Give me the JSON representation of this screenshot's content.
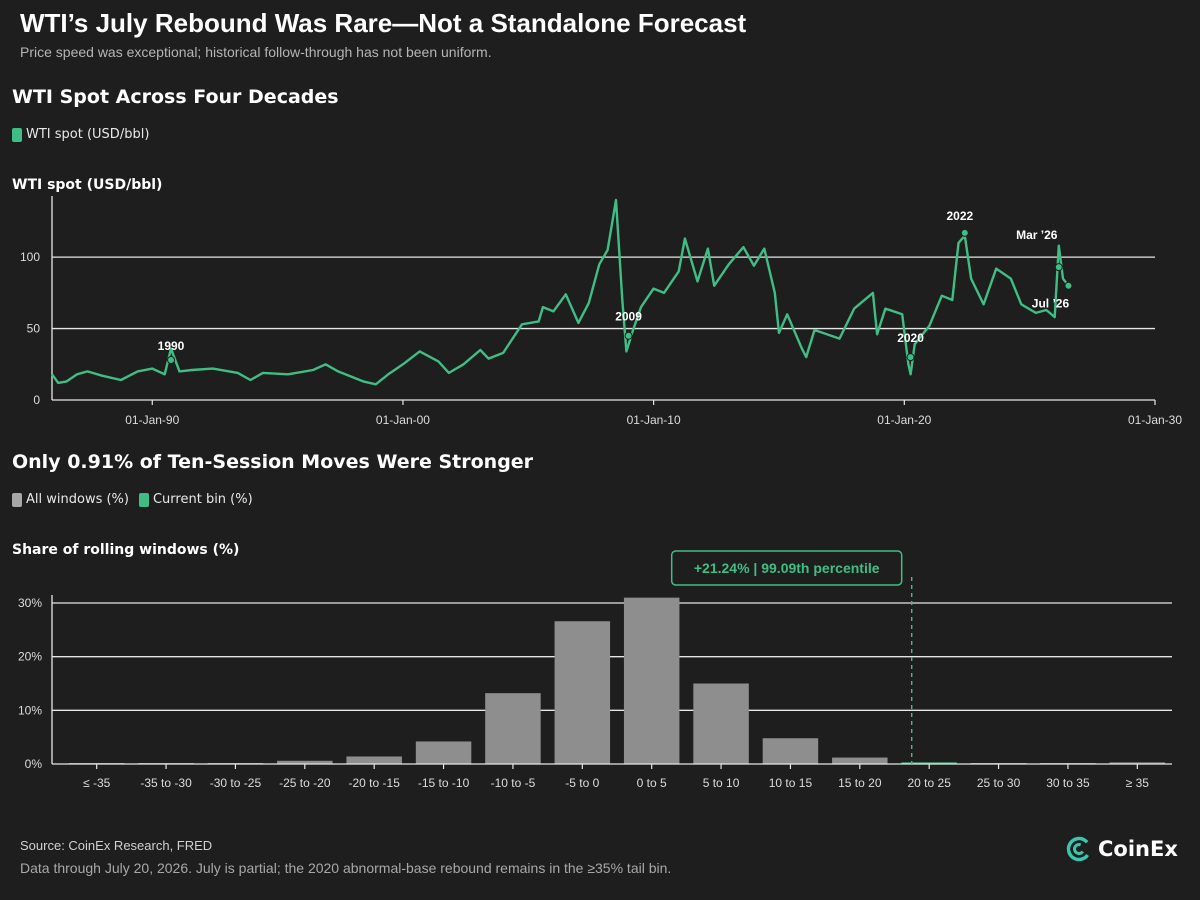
{
  "header": {
    "title": "WTI’s July Rebound Was Rare—Not a Standalone Forecast",
    "subtitle": "Price speed was exceptional; historical follow-through has not been uniform."
  },
  "colors": {
    "background": "#1e1e1e",
    "accent": "#3fbe84",
    "bar": "#8e8e8e",
    "grid": "#ffffff"
  },
  "chart_data": [
    {
      "type": "line",
      "title": "WTI Spot Across Four Decades",
      "legend": [
        "WTI spot (USD/bbl)"
      ],
      "ylabel": "WTI spot (USD/bbl)",
      "xlim": [
        "1986-01-01",
        "2030-01-01"
      ],
      "ylim": [
        0,
        140
      ],
      "x_tick_labels": [
        "01-Jan-90",
        "01-Jan-00",
        "01-Jan-10",
        "01-Jan-20",
        "01-Jan-30"
      ],
      "x_ticks": [
        "1990-01-01",
        "2000-01-01",
        "2010-01-01",
        "2020-01-01",
        "2030-01-01"
      ],
      "y_ticks": [
        0,
        50,
        100
      ],
      "series": [
        {
          "name": "WTI spot (USD/bbl)",
          "points": [
            [
              "1986-01-01",
              18
            ],
            [
              "1986-04-01",
              12
            ],
            [
              "1986-08-01",
              13
            ],
            [
              "1987-01-01",
              18
            ],
            [
              "1987-06-01",
              20
            ],
            [
              "1988-01-01",
              17
            ],
            [
              "1988-10-01",
              14
            ],
            [
              "1989-06-01",
              20
            ],
            [
              "1990-01-01",
              22
            ],
            [
              "1990-07-01",
              18
            ],
            [
              "1990-10-01",
              36
            ],
            [
              "1991-02-01",
              20
            ],
            [
              "1991-08-01",
              21
            ],
            [
              "1992-06-01",
              22
            ],
            [
              "1993-06-01",
              19
            ],
            [
              "1993-12-01",
              14
            ],
            [
              "1994-06-01",
              19
            ],
            [
              "1995-06-01",
              18
            ],
            [
              "1996-06-01",
              21
            ],
            [
              "1996-12-01",
              25
            ],
            [
              "1997-06-01",
              20
            ],
            [
              "1998-06-01",
              13
            ],
            [
              "1998-12-01",
              11
            ],
            [
              "1999-06-01",
              18
            ],
            [
              "2000-01-01",
              25
            ],
            [
              "2000-09-01",
              34
            ],
            [
              "2001-06-01",
              27
            ],
            [
              "2001-11-01",
              19
            ],
            [
              "2002-06-01",
              25
            ],
            [
              "2003-02-01",
              35
            ],
            [
              "2003-06-01",
              29
            ],
            [
              "2004-01-01",
              33
            ],
            [
              "2004-10-01",
              53
            ],
            [
              "2005-06-01",
              55
            ],
            [
              "2005-08-01",
              65
            ],
            [
              "2006-01-01",
              62
            ],
            [
              "2006-07-01",
              74
            ],
            [
              "2007-01-01",
              54
            ],
            [
              "2007-06-01",
              68
            ],
            [
              "2007-11-01",
              95
            ],
            [
              "2008-03-01",
              105
            ],
            [
              "2008-07-01",
              140
            ],
            [
              "2008-10-01",
              70
            ],
            [
              "2008-12-01",
              34
            ],
            [
              "2009-03-01",
              48
            ],
            [
              "2009-07-01",
              65
            ],
            [
              "2010-01-01",
              78
            ],
            [
              "2010-06-01",
              75
            ],
            [
              "2011-01-01",
              90
            ],
            [
              "2011-04-01",
              113
            ],
            [
              "2011-10-01",
              83
            ],
            [
              "2012-03-01",
              106
            ],
            [
              "2012-06-01",
              80
            ],
            [
              "2013-01-01",
              95
            ],
            [
              "2013-08-01",
              107
            ],
            [
              "2014-01-01",
              94
            ],
            [
              "2014-06-01",
              106
            ],
            [
              "2014-11-01",
              75
            ],
            [
              "2015-01-01",
              47
            ],
            [
              "2015-05-01",
              60
            ],
            [
              "2015-12-01",
              36
            ],
            [
              "2016-02-01",
              30
            ],
            [
              "2016-06-01",
              49
            ],
            [
              "2017-06-01",
              43
            ],
            [
              "2018-01-01",
              64
            ],
            [
              "2018-10-01",
              75
            ],
            [
              "2018-12-01",
              46
            ],
            [
              "2019-04-01",
              64
            ],
            [
              "2019-12-01",
              60
            ],
            [
              "2020-03-01",
              25
            ],
            [
              "2020-04-01",
              18
            ],
            [
              "2020-06-01",
              39
            ],
            [
              "2021-01-01",
              52
            ],
            [
              "2021-07-01",
              73
            ],
            [
              "2021-12-01",
              70
            ],
            [
              "2022-03-01",
              110
            ],
            [
              "2022-06-01",
              115
            ],
            [
              "2022-09-01",
              85
            ],
            [
              "2023-03-01",
              67
            ],
            [
              "2023-09-01",
              92
            ],
            [
              "2024-04-01",
              85
            ],
            [
              "2024-09-01",
              67
            ],
            [
              "2025-04-01",
              61
            ],
            [
              "2025-09-01",
              63
            ],
            [
              "2026-01-01",
              58
            ],
            [
              "2026-03-01",
              108
            ],
            [
              "2026-05-01",
              85
            ],
            [
              "2026-07-20",
              80
            ]
          ]
        }
      ],
      "annotations": [
        {
          "label": "1990",
          "x": "1990-10-01",
          "y": 28
        },
        {
          "label": "2009",
          "x": "2009-01-01",
          "y": 45
        },
        {
          "label": "2020",
          "x": "2020-04-01",
          "y": 30
        },
        {
          "label": "2022",
          "x": "2022-06-01",
          "y": 117
        },
        {
          "label": "Mar ’26",
          "x": "2026-03-01",
          "y": 93
        },
        {
          "label": "Jul ’26",
          "x": "2026-07-20",
          "y": 80
        }
      ]
    },
    {
      "type": "bar",
      "title": "Only 0.91% of Ten-Session Moves Were Stronger",
      "legend": [
        "All windows (%)",
        "Current bin (%)"
      ],
      "ylabel": "Share of rolling windows (%)",
      "ylim": [
        0,
        35
      ],
      "y_ticks": [
        0,
        10,
        20,
        30
      ],
      "y_tick_labels": [
        "0%",
        "10%",
        "20%",
        "30%"
      ],
      "categories": [
        "≤ -35",
        "-35 to -30",
        "-30 to -25",
        "-25 to -20",
        "-20 to -15",
        "-15 to -10",
        "-10 to -5",
        "-5 to 0",
        "0 to 5",
        "5 to 10",
        "10 to 15",
        "15 to 20",
        "20 to 25",
        "25 to 30",
        "30 to 35",
        "≥ 35"
      ],
      "series": [
        {
          "name": "All windows (%)",
          "values": [
            0.05,
            0.05,
            0.1,
            0.6,
            1.4,
            4.2,
            13.2,
            26.6,
            31.0,
            15.0,
            4.8,
            1.2,
            0.3,
            0.08,
            0.05,
            0.3
          ]
        },
        {
          "name": "Current bin (%)",
          "category": "20 to 25",
          "value": 0.3
        }
      ],
      "marker": {
        "value": 21.24,
        "label": "+21.24% | 99.09th percentile"
      }
    }
  ],
  "footer": {
    "source": "Source: CoinEx Research, FRED",
    "note": "Data through July 20, 2026. July is partial; the 2020 abnormal-base rebound remains in the ≥35% tail bin.",
    "logo_text": "CoinEx"
  }
}
